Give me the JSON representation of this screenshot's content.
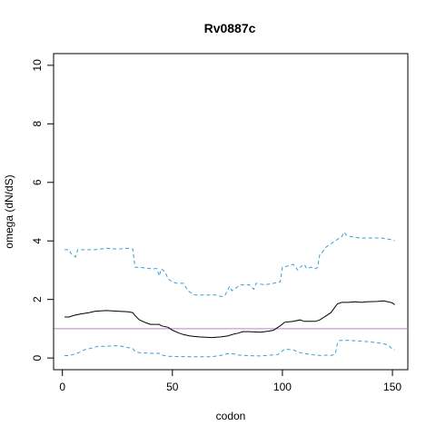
{
  "chart_data": {
    "type": "line",
    "title": "Rv0887c",
    "xlabel": "codon",
    "ylabel": "omega (dN/dS)",
    "xlim": [
      -4,
      157
    ],
    "ylim": [
      -0.4,
      10.4
    ],
    "xticks": [
      0,
      50,
      100,
      150
    ],
    "yticks": [
      0,
      2,
      4,
      6,
      8,
      10
    ],
    "grid": false,
    "reference_line": {
      "y": 1,
      "color": "#c77cd4"
    },
    "series": [
      {
        "role": "upper",
        "color": "#3b9fd6",
        "dash": true,
        "points": [
          [
            1,
            3.7
          ],
          [
            3,
            3.7
          ],
          [
            4,
            3.55
          ],
          [
            5,
            3.5
          ],
          [
            6,
            3.45
          ],
          [
            7,
            3.7
          ],
          [
            8,
            3.7
          ],
          [
            15,
            3.7
          ],
          [
            20,
            3.75
          ],
          [
            25,
            3.72
          ],
          [
            30,
            3.75
          ],
          [
            32,
            3.72
          ],
          [
            33,
            3.1
          ],
          [
            35,
            3.1
          ],
          [
            40,
            3.05
          ],
          [
            43,
            3.05
          ],
          [
            44,
            2.8
          ],
          [
            45,
            3.05
          ],
          [
            47,
            2.9
          ],
          [
            48,
            2.7
          ],
          [
            50,
            2.6
          ],
          [
            52,
            2.55
          ],
          [
            55,
            2.55
          ],
          [
            57,
            2.3
          ],
          [
            60,
            2.15
          ],
          [
            67,
            2.15
          ],
          [
            70,
            2.15
          ],
          [
            72,
            2.1
          ],
          [
            73,
            2.1
          ],
          [
            74,
            2.15
          ],
          [
            75,
            2.3
          ],
          [
            76,
            2.45
          ],
          [
            77,
            2.3
          ],
          [
            80,
            2.45
          ],
          [
            81,
            2.5
          ],
          [
            85,
            2.5
          ],
          [
            87,
            2.35
          ],
          [
            88,
            2.55
          ],
          [
            92,
            2.5
          ],
          [
            96,
            2.55
          ],
          [
            99,
            2.6
          ],
          [
            100,
            3.1
          ],
          [
            103,
            3.15
          ],
          [
            105,
            3.2
          ],
          [
            107,
            3.0
          ],
          [
            108,
            3.1
          ],
          [
            110,
            3.2
          ],
          [
            111,
            3.05
          ],
          [
            113,
            3.1
          ],
          [
            115,
            3.05
          ],
          [
            116,
            3.1
          ],
          [
            117,
            3.55
          ],
          [
            118,
            3.6
          ],
          [
            120,
            3.8
          ],
          [
            122,
            3.9
          ],
          [
            125,
            4.05
          ],
          [
            127,
            4.15
          ],
          [
            128,
            4.3
          ],
          [
            129,
            4.2
          ],
          [
            131,
            4.15
          ],
          [
            135,
            4.1
          ],
          [
            145,
            4.1
          ],
          [
            149,
            4.05
          ],
          [
            151,
            4.0
          ]
        ]
      },
      {
        "role": "estimate",
        "color": "#000000",
        "dash": false,
        "points": [
          [
            1,
            1.4
          ],
          [
            3,
            1.4
          ],
          [
            5,
            1.45
          ],
          [
            8,
            1.5
          ],
          [
            12,
            1.55
          ],
          [
            15,
            1.6
          ],
          [
            20,
            1.62
          ],
          [
            25,
            1.6
          ],
          [
            30,
            1.58
          ],
          [
            32,
            1.55
          ],
          [
            33,
            1.45
          ],
          [
            35,
            1.3
          ],
          [
            38,
            1.2
          ],
          [
            40,
            1.15
          ],
          [
            44,
            1.15
          ],
          [
            45,
            1.1
          ],
          [
            48,
            1.05
          ],
          [
            50,
            0.95
          ],
          [
            53,
            0.85
          ],
          [
            55,
            0.8
          ],
          [
            58,
            0.75
          ],
          [
            62,
            0.72
          ],
          [
            68,
            0.7
          ],
          [
            72,
            0.72
          ],
          [
            75,
            0.75
          ],
          [
            78,
            0.82
          ],
          [
            80,
            0.85
          ],
          [
            82,
            0.9
          ],
          [
            85,
            0.9
          ],
          [
            90,
            0.88
          ],
          [
            94,
            0.92
          ],
          [
            96,
            0.95
          ],
          [
            99,
            1.1
          ],
          [
            101,
            1.22
          ],
          [
            105,
            1.25
          ],
          [
            108,
            1.3
          ],
          [
            110,
            1.25
          ],
          [
            115,
            1.25
          ],
          [
            117,
            1.3
          ],
          [
            120,
            1.45
          ],
          [
            122,
            1.55
          ],
          [
            124,
            1.75
          ],
          [
            125,
            1.85
          ],
          [
            127,
            1.9
          ],
          [
            130,
            1.9
          ],
          [
            133,
            1.92
          ],
          [
            136,
            1.9
          ],
          [
            138,
            1.92
          ],
          [
            143,
            1.93
          ],
          [
            146,
            1.95
          ],
          [
            148,
            1.92
          ],
          [
            150,
            1.88
          ],
          [
            151,
            1.82
          ]
        ]
      },
      {
        "role": "lower",
        "color": "#3b9fd6",
        "dash": true,
        "points": [
          [
            1,
            0.08
          ],
          [
            3,
            0.08
          ],
          [
            5,
            0.12
          ],
          [
            8,
            0.2
          ],
          [
            10,
            0.28
          ],
          [
            14,
            0.35
          ],
          [
            16,
            0.4
          ],
          [
            20,
            0.4
          ],
          [
            24,
            0.42
          ],
          [
            27,
            0.4
          ],
          [
            30,
            0.35
          ],
          [
            32,
            0.32
          ],
          [
            33,
            0.22
          ],
          [
            35,
            0.18
          ],
          [
            40,
            0.16
          ],
          [
            44,
            0.16
          ],
          [
            45,
            0.1
          ],
          [
            48,
            0.06
          ],
          [
            52,
            0.05
          ],
          [
            60,
            0.04
          ],
          [
            68,
            0.04
          ],
          [
            70,
            0.07
          ],
          [
            73,
            0.1
          ],
          [
            75,
            0.15
          ],
          [
            78,
            0.14
          ],
          [
            80,
            0.1
          ],
          [
            84,
            0.08
          ],
          [
            90,
            0.07
          ],
          [
            95,
            0.1
          ],
          [
            98,
            0.12
          ],
          [
            99,
            0.18
          ],
          [
            101,
            0.3
          ],
          [
            105,
            0.28
          ],
          [
            107,
            0.2
          ],
          [
            110,
            0.15
          ],
          [
            115,
            0.1
          ],
          [
            118,
            0.08
          ],
          [
            120,
            0.1
          ],
          [
            122,
            0.08
          ],
          [
            124,
            0.14
          ],
          [
            125,
            0.5
          ],
          [
            126,
            0.6
          ],
          [
            130,
            0.6
          ],
          [
            135,
            0.58
          ],
          [
            140,
            0.55
          ],
          [
            145,
            0.5
          ],
          [
            148,
            0.45
          ],
          [
            150,
            0.3
          ],
          [
            151,
            0.28
          ]
        ]
      }
    ]
  }
}
